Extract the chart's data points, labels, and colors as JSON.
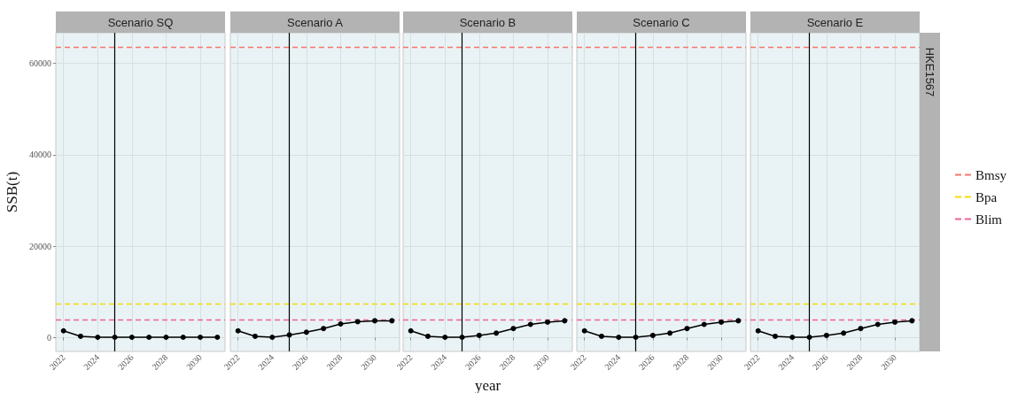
{
  "chart_data": [
    {
      "type": "line",
      "title": "Scenario SQ",
      "ylabel": "SSB(t)",
      "x": [
        2022,
        2023,
        2024,
        2025,
        2026,
        2027,
        2028,
        2029,
        2030,
        2031
      ],
      "series": [
        {
          "color": "#000000",
          "values": [
            1500,
            300,
            100,
            100,
            100,
            100,
            100,
            100,
            100,
            100
          ]
        }
      ],
      "xlim": [
        2021.55,
        2031.45
      ],
      "xticks": [
        2022,
        2024,
        2026,
        2028,
        2030
      ],
      "ylim": [
        -3000,
        66700
      ],
      "yticks": [
        0,
        20000,
        40000,
        60000
      ],
      "grid": true,
      "marker": "circle",
      "line_style": "solid",
      "ref_lines": [
        {
          "axis": "y",
          "value": 63600,
          "label": null,
          "color": "#f8766d",
          "line_style": "dashed"
        },
        {
          "axis": "y",
          "value": 7500,
          "label": null,
          "color": "#f5d90a",
          "line_style": "dashed"
        },
        {
          "axis": "y",
          "value": 3900,
          "label": null,
          "color": "#f0609e",
          "line_style": "dashed"
        },
        {
          "axis": "x",
          "value": 2025,
          "label": null,
          "color": "#000000",
          "line_style": "solid"
        }
      ]
    },
    {
      "type": "line",
      "title": "Scenario A",
      "x": [
        2022,
        2023,
        2024,
        2025,
        2026,
        2027,
        2028,
        2029,
        2030,
        2031
      ],
      "series": [
        {
          "color": "#000000",
          "values": [
            1500,
            300,
            100,
            600,
            1200,
            2000,
            3000,
            3500,
            3700,
            3700
          ]
        }
      ],
      "xlim": [
        2021.55,
        2031.45
      ],
      "xticks": [
        2022,
        2024,
        2026,
        2028,
        2030
      ],
      "ylim": [
        -3000,
        66700
      ],
      "yticks": [
        0,
        20000,
        40000,
        60000
      ],
      "grid": true,
      "marker": "circle",
      "line_style": "solid",
      "tick_labels": "x",
      "ref_lines": [
        {
          "axis": "y",
          "value": 63600,
          "label": null,
          "color": "#f8766d",
          "line_style": "dashed"
        },
        {
          "axis": "y",
          "value": 7500,
          "label": null,
          "color": "#f5d90a",
          "line_style": "dashed"
        },
        {
          "axis": "y",
          "value": 3900,
          "label": null,
          "color": "#f0609e",
          "line_style": "dashed"
        },
        {
          "axis": "x",
          "value": 2025,
          "label": null,
          "color": "#000000",
          "line_style": "solid"
        }
      ]
    },
    {
      "type": "line",
      "title": "Scenario B",
      "xlabel": "year",
      "x": [
        2022,
        2023,
        2024,
        2025,
        2026,
        2027,
        2028,
        2029,
        2030,
        2031
      ],
      "series": [
        {
          "color": "#000000",
          "values": [
            1500,
            300,
            100,
            100,
            500,
            1000,
            2000,
            2900,
            3400,
            3700
          ]
        }
      ],
      "xlim": [
        2021.55,
        2031.45
      ],
      "xticks": [
        2022,
        2024,
        2026,
        2028,
        2030
      ],
      "ylim": [
        -3000,
        66700
      ],
      "yticks": [
        0,
        20000,
        40000,
        60000
      ],
      "grid": true,
      "marker": "circle",
      "line_style": "solid",
      "tick_labels": "x",
      "ref_lines": [
        {
          "axis": "y",
          "value": 63600,
          "label": null,
          "color": "#f8766d",
          "line_style": "dashed"
        },
        {
          "axis": "y",
          "value": 7500,
          "label": null,
          "color": "#f5d90a",
          "line_style": "dashed"
        },
        {
          "axis": "y",
          "value": 3900,
          "label": null,
          "color": "#f0609e",
          "line_style": "dashed"
        },
        {
          "axis": "x",
          "value": 2025,
          "label": null,
          "color": "#000000",
          "line_style": "solid"
        }
      ]
    },
    {
      "type": "line",
      "title": "Scenario C",
      "x": [
        2022,
        2023,
        2024,
        2025,
        2026,
        2027,
        2028,
        2029,
        2030,
        2031
      ],
      "series": [
        {
          "color": "#000000",
          "values": [
            1500,
            300,
            100,
            100,
            500,
            1000,
            2000,
            2900,
            3400,
            3700
          ]
        }
      ],
      "xlim": [
        2021.55,
        2031.45
      ],
      "xticks": [
        2022,
        2024,
        2026,
        2028,
        2030
      ],
      "ylim": [
        -3000,
        66700
      ],
      "yticks": [
        0,
        20000,
        40000,
        60000
      ],
      "grid": true,
      "marker": "circle",
      "line_style": "solid",
      "tick_labels": "x",
      "ref_lines": [
        {
          "axis": "y",
          "value": 63600,
          "label": null,
          "color": "#f8766d",
          "line_style": "dashed"
        },
        {
          "axis": "y",
          "value": 7500,
          "label": null,
          "color": "#f5d90a",
          "line_style": "dashed"
        },
        {
          "axis": "y",
          "value": 3900,
          "label": null,
          "color": "#f0609e",
          "line_style": "dashed"
        },
        {
          "axis": "x",
          "value": 2025,
          "label": null,
          "color": "#000000",
          "line_style": "solid"
        }
      ]
    },
    {
      "type": "line",
      "title": "Scenario E",
      "x": [
        2022,
        2023,
        2024,
        2025,
        2026,
        2027,
        2028,
        2029,
        2030,
        2031
      ],
      "series": [
        {
          "color": "#000000",
          "values": [
            1500,
            300,
            100,
            100,
            500,
            1000,
            2000,
            2900,
            3400,
            3700
          ]
        }
      ],
      "xlim": [
        2021.55,
        2031.45
      ],
      "xticks": [
        2022,
        2024,
        2026,
        2028,
        2030
      ],
      "ylim": [
        -3000,
        66700
      ],
      "yticks": [
        0,
        20000,
        40000,
        60000
      ],
      "grid": true,
      "marker": "circle",
      "line_style": "solid",
      "tick_labels": "x",
      "legend": "right",
      "annotations": [
        "HKE1567"
      ],
      "ref_lines": [
        {
          "axis": "y",
          "value": 63600,
          "label": "Bmsy",
          "color": "#f8766d",
          "line_style": "dashed"
        },
        {
          "axis": "y",
          "value": 7500,
          "label": "Bpa",
          "color": "#f5d90a",
          "line_style": "dashed"
        },
        {
          "axis": "y",
          "value": 3900,
          "label": "Blim",
          "color": "#f0609e",
          "line_style": "dashed"
        },
        {
          "axis": "x",
          "value": 2025,
          "label": null,
          "color": "#000000",
          "line_style": "solid"
        }
      ]
    }
  ]
}
